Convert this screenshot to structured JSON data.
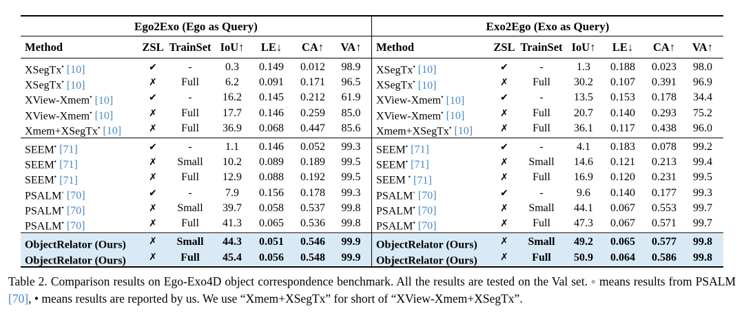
{
  "colors": {
    "citation_blue": "#4589c8",
    "highlight_bg": "#d9eaf7",
    "rule": "#000000",
    "text": "#000000"
  },
  "table": {
    "columns": [
      "Method",
      "ZSL",
      "TrainSet",
      "IoU↑",
      "LE↓",
      "CA↑",
      "VA↑"
    ],
    "marks": {
      "check": "✔",
      "cross": "✗"
    },
    "halves": [
      {
        "title": "Ego2Exo (Ego as Query)",
        "groups": [
          {
            "highlight": false,
            "rows": [
              {
                "method": "XSegTx",
                "mark": "•",
                "cite": "[10]",
                "zsl": "check",
                "train": "-",
                "iou": "0.3",
                "le": "0.149",
                "ca": "0.012",
                "va": "98.9",
                "bold": false
              },
              {
                "method": "XSegTx",
                "mark": "•",
                "cite": "[10]",
                "zsl": "cross",
                "train": "Full",
                "iou": "6.2",
                "le": "0.091",
                "ca": "0.171",
                "va": "96.5",
                "bold": false
              },
              {
                "method": "XView-Xmem",
                "mark": "•",
                "cite": "[10]",
                "zsl": "check",
                "train": "-",
                "iou": "16.2",
                "le": "0.145",
                "ca": "0.212",
                "va": "61.9",
                "bold": false
              },
              {
                "method": "XView-Xmem",
                "mark": "•",
                "cite": "[10]",
                "zsl": "cross",
                "train": "Full",
                "iou": "17.7",
                "le": "0.146",
                "ca": "0.259",
                "va": "85.0",
                "bold": false
              },
              {
                "method": "Xmem+XSegTx",
                "mark": "•",
                "cite": "[10]",
                "zsl": "cross",
                "train": "Full",
                "iou": "36.9",
                "le": "0.068",
                "ca": "0.447",
                "va": "85.6",
                "bold": false
              }
            ]
          },
          {
            "highlight": false,
            "rows": [
              {
                "method": "SEEM",
                "mark": "•",
                "cite": "[71]",
                "zsl": "check",
                "train": "-",
                "iou": "1.1",
                "le": "0.146",
                "ca": "0.052",
                "va": "99.3",
                "bold": false
              },
              {
                "method": "SEEM",
                "mark": "•",
                "cite": "[71]",
                "zsl": "cross",
                "train": "Small",
                "iou": "10.2",
                "le": "0.089",
                "ca": "0.189",
                "va": "99.5",
                "bold": false
              },
              {
                "method": "SEEM",
                "mark": "•",
                "cite": "[71]",
                "zsl": "cross",
                "train": "Full",
                "iou": "12.9",
                "le": "0.088",
                "ca": "0.192",
                "va": "99.5",
                "bold": false
              },
              {
                "method": "PSALM",
                "mark": "◦",
                "cite": "[70]",
                "zsl": "check",
                "train": "-",
                "iou": "7.9",
                "le": "0.156",
                "ca": "0.178",
                "va": "99.3",
                "bold": false
              },
              {
                "method": "PSALM",
                "mark": "•",
                "cite": "[70]",
                "zsl": "cross",
                "train": "Small",
                "iou": "39.7",
                "le": "0.058",
                "ca": "0.537",
                "va": "99.8",
                "bold": false
              },
              {
                "method": "PSALM",
                "mark": "•",
                "cite": "[70]",
                "zsl": "cross",
                "train": "Full",
                "iou": "41.3",
                "le": "0.065",
                "ca": "0.536",
                "va": "99.8",
                "bold": false
              }
            ]
          },
          {
            "highlight": true,
            "rows": [
              {
                "method": "ObjectRelator (Ours)",
                "mark": "",
                "cite": "",
                "zsl": "cross",
                "train": "Small",
                "iou": "44.3",
                "le": "0.051",
                "ca": "0.546",
                "va": "99.9",
                "bold": true
              },
              {
                "method": "ObjectRelator (Ours)",
                "mark": "",
                "cite": "",
                "zsl": "cross",
                "train": "Full",
                "iou": "45.4",
                "le": "0.056",
                "ca": "0.548",
                "va": "99.9",
                "bold": true
              }
            ]
          }
        ]
      },
      {
        "title": "Exo2Ego (Exo as Query)",
        "groups": [
          {
            "highlight": false,
            "rows": [
              {
                "method": "XSegTx",
                "mark": "•",
                "cite": "[10]",
                "zsl": "check",
                "train": "-",
                "iou": "1.3",
                "le": "0.188",
                "ca": "0.023",
                "va": "98.0",
                "bold": false
              },
              {
                "method": "XSegTx",
                "mark": "•",
                "cite": "[10]",
                "zsl": "cross",
                "train": "Full",
                "iou": "30.2",
                "le": "0.107",
                "ca": "0.391",
                "va": "96.9",
                "bold": false
              },
              {
                "method": "XView-Xmem",
                "mark": "•",
                "cite": "[10]",
                "zsl": "check",
                "train": "-",
                "iou": "13.5",
                "le": "0.153",
                "ca": "0.178",
                "va": "34.4",
                "bold": false
              },
              {
                "method": "XView-Xmem",
                "mark": "•",
                "cite": "[10]",
                "zsl": "cross",
                "train": "Full",
                "iou": "20.7",
                "le": "0.140",
                "ca": "0.293",
                "va": "75.2",
                "bold": false
              },
              {
                "method": "Xmem+XSegTx",
                "mark": "•",
                "cite": "[10]",
                "zsl": "cross",
                "train": "Full",
                "iou": "36.1",
                "le": "0.117",
                "ca": "0.438",
                "va": "96.0",
                "bold": false
              }
            ]
          },
          {
            "highlight": false,
            "rows": [
              {
                "method": "SEEM",
                "mark": "•",
                "cite": "[71]",
                "zsl": "check",
                "train": "-",
                "iou": "4.1",
                "le": "0.183",
                "ca": "0.078",
                "va": "99.2",
                "bold": false
              },
              {
                "method": "SEEM",
                "mark": "•",
                "cite": "[71]",
                "zsl": "cross",
                "train": "Small",
                "iou": "14.6",
                "le": "0.121",
                "ca": "0.213",
                "va": "99.4",
                "bold": false
              },
              {
                "method": "SEEM ",
                "mark": "•",
                "cite": "[71]",
                "zsl": "cross",
                "train": "Full",
                "iou": "16.9",
                "le": "0.120",
                "ca": "0.231",
                "va": "99.5",
                "bold": false
              },
              {
                "method": "PSALM",
                "mark": "◦",
                "cite": "[70]",
                "zsl": "check",
                "train": "-",
                "iou": "9.6",
                "le": "0.140",
                "ca": "0.177",
                "va": "99.3",
                "bold": false
              },
              {
                "method": "PSALM",
                "mark": "•",
                "cite": "[70]",
                "zsl": "cross",
                "train": "Small",
                "iou": "44.1",
                "le": "0.067",
                "ca": "0.553",
                "va": "99.7",
                "bold": false
              },
              {
                "method": "PSALM",
                "mark": "•",
                "cite": "[70]",
                "zsl": "cross",
                "train": "Full",
                "iou": "47.3",
                "le": "0.067",
                "ca": "0.571",
                "va": "99.7",
                "bold": false
              }
            ]
          },
          {
            "highlight": true,
            "rows": [
              {
                "method": "ObjectRelator (Ours)",
                "mark": "",
                "cite": "",
                "zsl": "cross",
                "train": "Small",
                "iou": "49.2",
                "le": "0.065",
                "ca": "0.577",
                "va": "99.8",
                "bold": true
              },
              {
                "method": "ObjectRelator (Ours)",
                "mark": "",
                "cite": "",
                "zsl": "cross",
                "train": "Full",
                "iou": "50.9",
                "le": "0.064",
                "ca": "0.586",
                "va": "99.8",
                "bold": true
              }
            ]
          }
        ]
      }
    ]
  },
  "caption": {
    "before_cite": "Table 2. Comparison results on Ego-Exo4D object correspondence benchmark. All the results are tested on the Val set. ◦ means results from PSALM ",
    "cite": "[70]",
    "after_cite": ", • means results are reported by us. We use “Xmem+XSegTx” for short of “XView-Xmem+XSegTx”."
  }
}
